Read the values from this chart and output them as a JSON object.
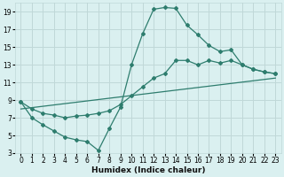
{
  "xlabel": "Humidex (Indice chaleur)",
  "bg_color": "#daf0f0",
  "grid_color": "#c0d8d8",
  "line_color": "#2e7d6e",
  "xlim": [
    -0.5,
    23.5
  ],
  "ylim": [
    3,
    20
  ],
  "xticks": [
    0,
    1,
    2,
    3,
    4,
    5,
    6,
    7,
    8,
    9,
    10,
    11,
    12,
    13,
    14,
    15,
    16,
    17,
    18,
    19,
    20,
    21,
    22,
    23
  ],
  "yticks": [
    3,
    5,
    7,
    9,
    11,
    13,
    15,
    17,
    19
  ],
  "curve1_x": [
    0,
    1,
    2,
    3,
    4,
    5,
    6,
    7,
    8,
    9,
    10,
    11,
    12,
    13,
    14,
    15,
    16,
    17,
    18,
    19,
    20,
    21,
    22,
    23
  ],
  "curve1_y": [
    8.8,
    7.0,
    6.2,
    5.5,
    4.8,
    4.5,
    4.3,
    3.3,
    5.8,
    8.2,
    13.0,
    16.5,
    19.3,
    19.5,
    19.4,
    17.5,
    16.4,
    15.2,
    14.5,
    14.7,
    13.0,
    12.5,
    12.2,
    12.0
  ],
  "curve2_x": [
    0,
    1,
    2,
    3,
    4,
    5,
    6,
    7,
    8,
    9,
    10,
    11,
    12,
    13,
    14,
    15,
    16,
    17,
    18,
    19,
    20,
    21,
    22,
    23
  ],
  "curve2_y": [
    8.8,
    8.0,
    7.5,
    7.3,
    7.0,
    7.2,
    7.3,
    7.5,
    7.8,
    8.5,
    9.5,
    10.5,
    11.5,
    12.0,
    13.5,
    13.5,
    13.0,
    13.5,
    13.2,
    13.5,
    13.0,
    12.5,
    12.2,
    12.0
  ],
  "curve3_x": [
    0,
    23
  ],
  "curve3_y": [
    8.0,
    11.5
  ]
}
